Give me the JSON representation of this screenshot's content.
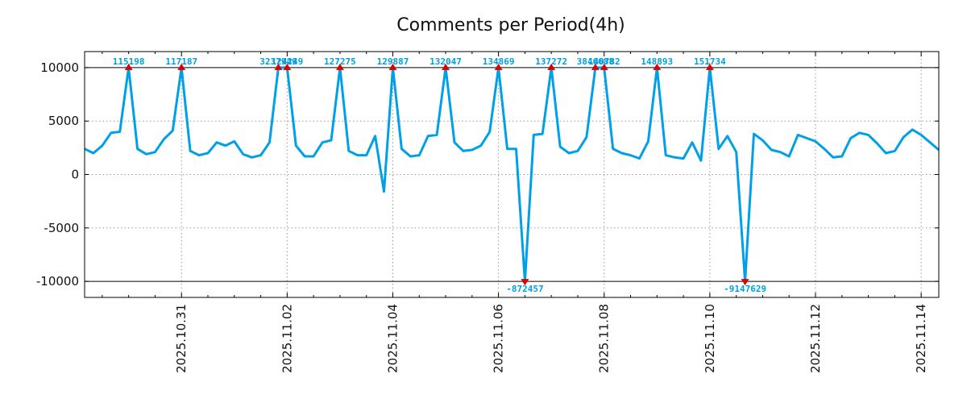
{
  "chart_data": {
    "type": "line",
    "title": "Comments per Period(4h)",
    "xlabel": "",
    "ylabel": "",
    "ylim": [
      -11500,
      11500
    ],
    "yticks": [
      -10000,
      -5000,
      0,
      5000,
      10000
    ],
    "ytick_labels": [
      "-10000",
      "-5000",
      "0",
      "5000",
      "10000"
    ],
    "xlim": [
      0,
      97
    ],
    "xticks": [
      11,
      23,
      35,
      47,
      59,
      71,
      83,
      95
    ],
    "xtick_labels": [
      "2025.10.31",
      "2025.11.02",
      "2025.11.04",
      "2025.11.06",
      "2025.11.08",
      "2025.11.10",
      "2025.11.12",
      "2025.11.14"
    ],
    "x_minor_ticks": [
      2,
      5,
      8,
      14,
      17,
      20,
      26,
      29,
      32,
      38,
      41,
      44,
      50,
      53,
      56,
      62,
      65,
      68,
      74,
      77,
      80,
      86,
      89,
      92
    ],
    "clip_range": [
      -10000,
      10000
    ],
    "grid": true,
    "line_color": "#00a0e8",
    "marker_color": "#dd0000",
    "label_color": "#00a0e0",
    "series": [
      {
        "name": "comments",
        "values": [
          2400,
          2000,
          2700,
          3900,
          4000,
          10000,
          2400,
          1900,
          2100,
          3300,
          4100,
          10000,
          2200,
          1800,
          2000,
          3000,
          2700,
          3100,
          1900,
          1600,
          1800,
          3000,
          10000,
          10000,
          2700,
          1700,
          1700,
          3000,
          3200,
          10000,
          2200,
          1800,
          1800,
          3600,
          -1600,
          10000,
          2400,
          1700,
          1800,
          3600,
          3700,
          10000,
          3000,
          2200,
          2300,
          2700,
          4000,
          10000,
          2400,
          2400,
          -10000,
          3700,
          3800,
          10000,
          2600,
          2000,
          2200,
          3500,
          10000,
          10000,
          2400,
          2000,
          1800,
          1500,
          3100,
          10000,
          1800,
          1600,
          1500,
          3000,
          1300,
          10000,
          2400,
          3600,
          2100,
          -10000,
          3800,
          3200,
          2300,
          2100,
          1700,
          3700,
          3400,
          3100,
          2400,
          1600,
          1700,
          3400,
          3900,
          3700,
          2900,
          2000,
          2200,
          3500,
          4200,
          3700,
          3000,
          2300
        ]
      }
    ],
    "annotations": [
      {
        "index": 5,
        "label": "115198",
        "dir": "up"
      },
      {
        "index": 11,
        "label": "117187",
        "dir": "up"
      },
      {
        "index": 22,
        "label": "3237949",
        "dir": "up"
      },
      {
        "index": 23,
        "label": "124249",
        "dir": "up"
      },
      {
        "index": 29,
        "label": "127275",
        "dir": "up"
      },
      {
        "index": 35,
        "label": "129887",
        "dir": "up"
      },
      {
        "index": 41,
        "label": "132047",
        "dir": "up"
      },
      {
        "index": 47,
        "label": "134869",
        "dir": "up"
      },
      {
        "index": 50,
        "label": "-872457",
        "dir": "down"
      },
      {
        "index": 53,
        "label": "137272",
        "dir": "up"
      },
      {
        "index": 58,
        "label": "3846688",
        "dir": "up"
      },
      {
        "index": 59,
        "label": "140782",
        "dir": "up"
      },
      {
        "index": 65,
        "label": "148893",
        "dir": "up"
      },
      {
        "index": 71,
        "label": "151734",
        "dir": "up"
      },
      {
        "index": 75,
        "label": "-9147629",
        "dir": "down"
      }
    ]
  }
}
